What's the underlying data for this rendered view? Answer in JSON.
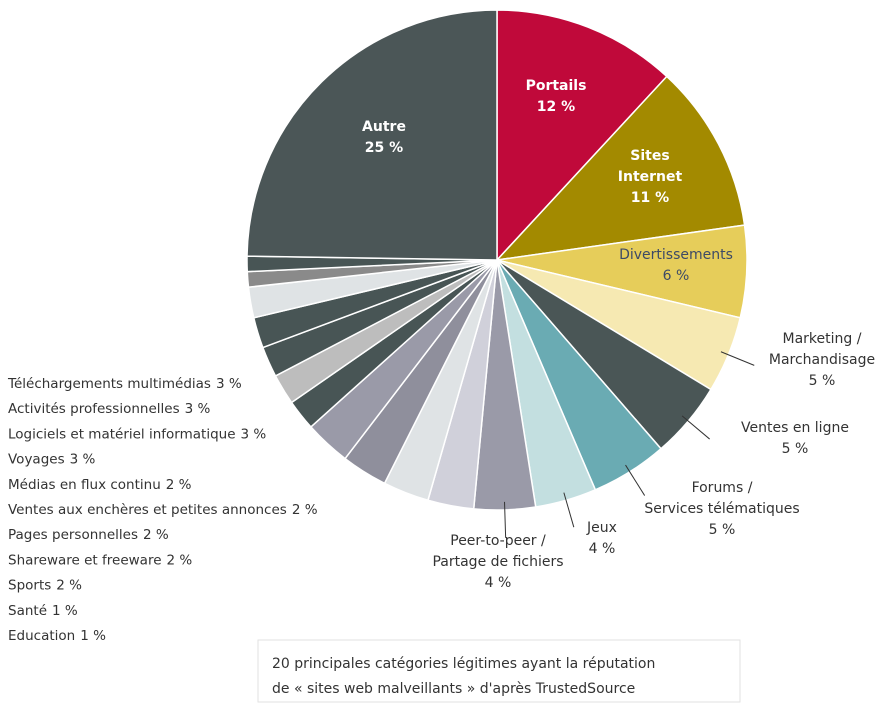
{
  "chart_data": {
    "type": "pie",
    "categories": [
      [
        "Portails"
      ],
      [
        "Sites",
        "Internet"
      ],
      [
        "Divertissements"
      ],
      [
        "Marketing /",
        "Marchandisage"
      ],
      [
        "Ventes en ligne"
      ],
      [
        "Forums /",
        "Services télématiques"
      ],
      [
        "Jeux"
      ],
      [
        "Peer-to-peer /",
        "Partage de fichiers"
      ],
      [
        "Téléchargements multimédias"
      ],
      [
        "Activités professionnelles"
      ],
      [
        "Logiciels et matériel informatique"
      ],
      [
        "Voyages"
      ],
      [
        "Médias en flux continu"
      ],
      [
        "Ventes aux enchères et petites annonces"
      ],
      [
        "Pages personnelles"
      ],
      [
        "Shareware et freeware"
      ],
      [
        "Sports"
      ],
      [
        "Santé"
      ],
      [
        "Education"
      ],
      [
        "Autre"
      ]
    ],
    "values": [
      12,
      11,
      6,
      5,
      5,
      5,
      4,
      4,
      3,
      3,
      3,
      3,
      2,
      2,
      2,
      2,
      2,
      1,
      1,
      25
    ],
    "value_labels": [
      "12 %",
      "11 %",
      "6 %",
      "5 %",
      "5 %",
      "5 %",
      "4 %",
      "4 %",
      "3 %",
      "3 %",
      "3 %",
      "3 %",
      "2 %",
      "2 %",
      "2 %",
      "2 %",
      "2 %",
      "1 %",
      "1 %",
      "25 %"
    ],
    "colors": [
      "#c0093a",
      "#a38a00",
      "#e6cd5a",
      "#f6e9b2",
      "#4a5656",
      "#6aabb3",
      "#c3dfe0",
      "#9a9aa8",
      "#d0d0da",
      "#dfe3e5",
      "#8f8f9c",
      "#9a9aa8",
      "#485555",
      "#bdbdbd",
      "#485555",
      "#485555",
      "#dfe3e5",
      "#8a8a8a",
      "#485555",
      "#4b5657"
    ],
    "caption": [
      "20 principales catégories légitimes ayant la réputation",
      "de « sites web malveillants » d'après TrustedSource"
    ]
  }
}
